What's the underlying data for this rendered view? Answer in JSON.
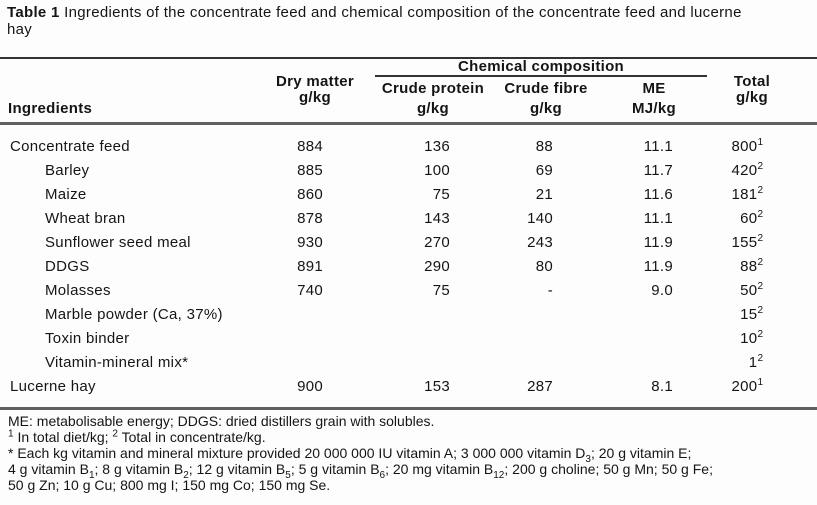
{
  "title": {
    "label": "Table 1",
    "line1": "Ingredients of the concentrate feed and chemical composition of the concentrate feed and lucerne",
    "line2": "hay"
  },
  "table": {
    "headers": {
      "ingredients": "Ingredients",
      "dry_matter_line1": "Dry matter",
      "dry_matter_line2": "g/kg",
      "chemical_composition": "Chemical composition",
      "crude_protein_line1": "Crude protein",
      "crude_protein_line2": "g/kg",
      "crude_fibre_line1": "Crude fibre",
      "crude_fibre_line2": "g/kg",
      "me_line1": "ME",
      "me_line2": "MJ/kg",
      "total_line1": "Total",
      "total_line2": "g/kg"
    },
    "rows": [
      {
        "ingredient": "Concentrate feed",
        "indent": false,
        "dry_matter": "884",
        "crude_protein": "136",
        "crude_fibre": "88",
        "me": "11.1",
        "total": "800",
        "total_sup": "1"
      },
      {
        "ingredient": "Barley",
        "indent": true,
        "dry_matter": "885",
        "crude_protein": "100",
        "crude_fibre": "69",
        "me": "11.7",
        "total": "420",
        "total_sup": "2"
      },
      {
        "ingredient": "Maize",
        "indent": true,
        "dry_matter": "860",
        "crude_protein": "75",
        "crude_fibre": "21",
        "me": "11.6",
        "total": "181",
        "total_sup": "2"
      },
      {
        "ingredient": "Wheat bran",
        "indent": true,
        "dry_matter": "878",
        "crude_protein": "143",
        "crude_fibre": "140",
        "me": "11.1",
        "total": "60",
        "total_sup": "2"
      },
      {
        "ingredient": "Sunflower seed meal",
        "indent": true,
        "dry_matter": "930",
        "crude_protein": "270",
        "crude_fibre": "243",
        "me": "11.9",
        "total": "155",
        "total_sup": "2"
      },
      {
        "ingredient": "DDGS",
        "indent": true,
        "dry_matter": "891",
        "crude_protein": "290",
        "crude_fibre": "80",
        "me": "11.9",
        "total": "88",
        "total_sup": "2"
      },
      {
        "ingredient": "Molasses",
        "indent": true,
        "dry_matter": "740",
        "crude_protein": "75",
        "crude_fibre": "-",
        "me": "9.0",
        "total": "50",
        "total_sup": "2"
      },
      {
        "ingredient": "Marble powder (Ca, 37%)",
        "indent": true,
        "dry_matter": "",
        "crude_protein": "",
        "crude_fibre": "",
        "me": "",
        "total": "15",
        "total_sup": "2"
      },
      {
        "ingredient": "Toxin binder",
        "indent": true,
        "dry_matter": "",
        "crude_protein": "",
        "crude_fibre": "",
        "me": "",
        "total": "10",
        "total_sup": "2"
      },
      {
        "ingredient": "Vitamin-mineral mix*",
        "indent": true,
        "dry_matter": "",
        "crude_protein": "",
        "crude_fibre": "",
        "me": "",
        "total": "1",
        "total_sup": "2"
      },
      {
        "ingredient": "Lucerne hay",
        "indent": false,
        "dry_matter": "900",
        "crude_protein": "153",
        "crude_fibre": "287",
        "me": "8.1",
        "total": "200",
        "total_sup": "1"
      }
    ]
  },
  "footnotes": [
    [
      {
        "t": "ME: metabolisable energy; DDGS: dried distillers grain with solubles."
      }
    ],
    [
      {
        "t": "1",
        "s": "sup"
      },
      {
        "t": " In total diet/kg; "
      },
      {
        "t": "2",
        "s": "sup"
      },
      {
        "t": " Total in concentrate/kg."
      }
    ],
    [
      {
        "t": "* Each kg vitamin and mineral mixture provided 20 000 000 IU vitamin A; 3 000 000 vitamin D"
      },
      {
        "t": "3",
        "s": "sub"
      },
      {
        "t": "; 20 g vitamin E;"
      }
    ],
    [
      {
        "t": "4 g vitamin B"
      },
      {
        "t": "1",
        "s": "sub"
      },
      {
        "t": "; 8 g vitamin B"
      },
      {
        "t": "2",
        "s": "sub"
      },
      {
        "t": "; 12 g vitamin B"
      },
      {
        "t": "5",
        "s": "sub"
      },
      {
        "t": "; 5 g vitamin B"
      },
      {
        "t": "6",
        "s": "sub"
      },
      {
        "t": "; 20 mg vitamin B"
      },
      {
        "t": "12",
        "s": "sub"
      },
      {
        "t": "; 200 g choline; 50 g Mn; 50 g Fe;"
      }
    ],
    [
      {
        "t": "50 g Zn; 10 g Cu; 800 mg I; 150 mg Co; 150 mg Se."
      }
    ]
  ],
  "colors": {
    "background": "#fdfdfd",
    "text": "#151515",
    "rule_thin": "#333333",
    "rule_thick": "#606060"
  }
}
